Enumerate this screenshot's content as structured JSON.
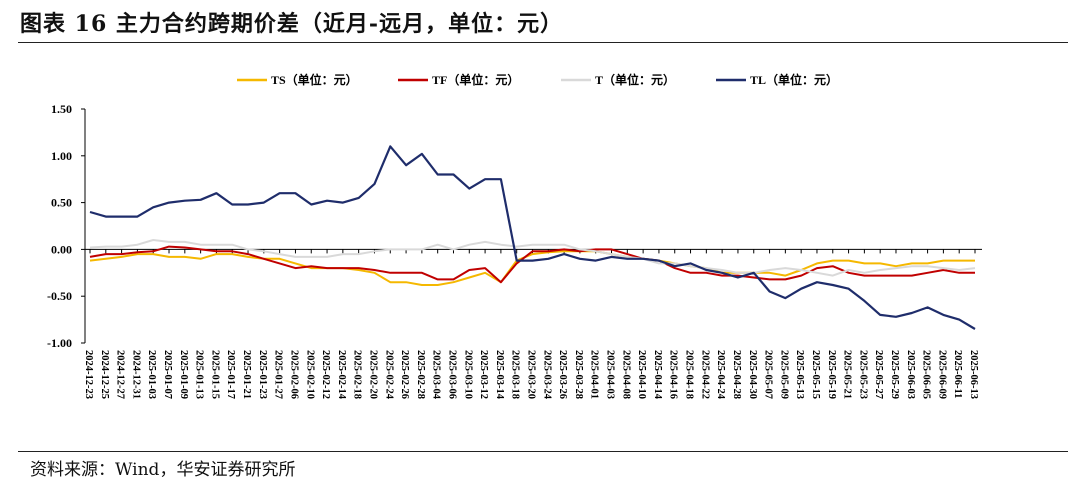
{
  "header": {
    "title": "图表 16  主力合约跨期价差（近月-远月，单位：元）"
  },
  "footer": {
    "source": "资料来源：Wind，华安证券研究所"
  },
  "chart_data": {
    "type": "line",
    "title": "",
    "xlabel": "",
    "ylabel": "",
    "ylim": [
      -1.0,
      1.5
    ],
    "yticks": [
      "1.50",
      "1.00",
      "0.50",
      "0.00",
      "-0.50",
      "-1.00"
    ],
    "legend_position": "top",
    "grid": false,
    "categories": [
      "2024-12-23",
      "2024-12-25",
      "2024-12-27",
      "2024-12-31",
      "2025-01-03",
      "2025-01-07",
      "2025-01-09",
      "2025-01-13",
      "2025-01-15",
      "2025-01-17",
      "2025-01-21",
      "2025-01-23",
      "2025-01-27",
      "2025-02-06",
      "2025-02-10",
      "2025-02-12",
      "2025-02-14",
      "2025-02-18",
      "2025-02-20",
      "2025-02-24",
      "2025-02-26",
      "2025-02-28",
      "2025-03-04",
      "2025-03-06",
      "2025-03-10",
      "2025-03-12",
      "2025-03-14",
      "2025-03-18",
      "2025-03-20",
      "2025-03-24",
      "2025-03-26",
      "2025-03-28",
      "2025-04-01",
      "2025-04-03",
      "2025-04-08",
      "2025-04-10",
      "2025-04-14",
      "2025-04-16",
      "2025-04-18",
      "2025-04-22",
      "2025-04-24",
      "2025-04-28",
      "2025-04-30",
      "2025-05-07",
      "2025-05-09",
      "2025-05-13",
      "2025-05-15",
      "2025-05-19",
      "2025-05-21",
      "2025-05-23",
      "2025-05-27",
      "2025-05-29",
      "2025-06-03",
      "2025-06-05",
      "2025-06-09",
      "2025-06-11",
      "2025-06-13"
    ],
    "series": [
      {
        "name": "TS（单位：元）",
        "color": "#F5B800",
        "values": [
          -0.12,
          -0.1,
          -0.08,
          -0.05,
          -0.05,
          -0.08,
          -0.08,
          -0.1,
          -0.05,
          -0.05,
          -0.08,
          -0.1,
          -0.1,
          -0.15,
          -0.2,
          -0.2,
          -0.2,
          -0.22,
          -0.25,
          -0.35,
          -0.35,
          -0.38,
          -0.38,
          -0.35,
          -0.3,
          -0.25,
          -0.35,
          -0.12,
          -0.05,
          -0.03,
          -0.02,
          -0.02,
          -0.02,
          -0.05,
          -0.08,
          -0.1,
          -0.12,
          -0.15,
          -0.18,
          -0.2,
          -0.25,
          -0.25,
          -0.25,
          -0.25,
          -0.28,
          -0.22,
          -0.15,
          -0.12,
          -0.12,
          -0.15,
          -0.15,
          -0.18,
          -0.15,
          -0.15,
          -0.12,
          -0.12,
          -0.12
        ]
      },
      {
        "name": "TF（单位：元）",
        "color": "#C00000",
        "values": [
          -0.08,
          -0.05,
          -0.05,
          -0.03,
          -0.02,
          0.03,
          0.02,
          0.0,
          -0.02,
          -0.02,
          -0.05,
          -0.1,
          -0.15,
          -0.2,
          -0.18,
          -0.2,
          -0.2,
          -0.2,
          -0.22,
          -0.25,
          -0.25,
          -0.25,
          -0.32,
          -0.32,
          -0.22,
          -0.2,
          -0.35,
          -0.15,
          -0.02,
          -0.02,
          0.0,
          -0.02,
          0.0,
          0.0,
          -0.05,
          -0.1,
          -0.12,
          -0.2,
          -0.25,
          -0.25,
          -0.28,
          -0.28,
          -0.3,
          -0.32,
          -0.32,
          -0.28,
          -0.2,
          -0.18,
          -0.25,
          -0.28,
          -0.28,
          -0.28,
          -0.28,
          -0.25,
          -0.22,
          -0.25,
          -0.25
        ]
      },
      {
        "name": "T（单位：元）",
        "color": "#D9D9D9",
        "values": [
          0.02,
          0.03,
          0.03,
          0.05,
          0.1,
          0.08,
          0.08,
          0.05,
          0.05,
          0.05,
          0.0,
          -0.02,
          -0.05,
          -0.08,
          -0.08,
          -0.08,
          -0.05,
          -0.05,
          -0.02,
          0.0,
          0.0,
          0.0,
          0.05,
          0.0,
          0.05,
          0.08,
          0.05,
          0.03,
          0.05,
          0.05,
          0.05,
          0.0,
          -0.02,
          -0.05,
          -0.08,
          -0.1,
          -0.15,
          -0.15,
          -0.18,
          -0.2,
          -0.22,
          -0.25,
          -0.25,
          -0.22,
          -0.2,
          -0.22,
          -0.25,
          -0.28,
          -0.22,
          -0.25,
          -0.22,
          -0.2,
          -0.18,
          -0.18,
          -0.2,
          -0.22,
          -0.2
        ]
      },
      {
        "name": "TL（单位：元）",
        "color": "#1F2D6B",
        "values": [
          0.4,
          0.35,
          0.35,
          0.35,
          0.45,
          0.5,
          0.52,
          0.53,
          0.6,
          0.48,
          0.48,
          0.5,
          0.6,
          0.6,
          0.48,
          0.52,
          0.5,
          0.55,
          0.7,
          1.1,
          0.9,
          1.02,
          0.8,
          0.8,
          0.65,
          0.75,
          0.75,
          -0.12,
          -0.12,
          -0.1,
          -0.05,
          -0.1,
          -0.12,
          -0.08,
          -0.1,
          -0.1,
          -0.12,
          -0.18,
          -0.15,
          -0.22,
          -0.25,
          -0.3,
          -0.25,
          -0.45,
          -0.52,
          -0.42,
          -0.35,
          -0.38,
          -0.42,
          -0.55,
          -0.7,
          -0.72,
          -0.68,
          -0.62,
          -0.7,
          -0.75,
          -0.85
        ]
      }
    ]
  }
}
